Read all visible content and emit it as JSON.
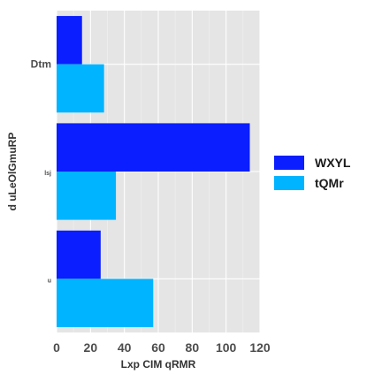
{
  "chart_data": {
    "type": "bar",
    "orientation": "horizontal",
    "categories": [
      "Dtm",
      "lsj",
      "u"
    ],
    "series": [
      {
        "name": "WXYL",
        "color": "#0a1eff",
        "values": [
          15,
          114,
          26
        ]
      },
      {
        "name": "tQMr",
        "color": "#00b4ff",
        "values": [
          28,
          35,
          57
        ]
      }
    ],
    "xlabel": "Lxp CIM qRMR",
    "ylabel": "d uLeOlGmuRP",
    "xlim": [
      0,
      120
    ],
    "xticks": [
      "0",
      "20",
      "40",
      "60",
      "80",
      "100",
      "120"
    ],
    "grid": true,
    "legend_position": "right",
    "panel_background": "#e5e5e5"
  }
}
